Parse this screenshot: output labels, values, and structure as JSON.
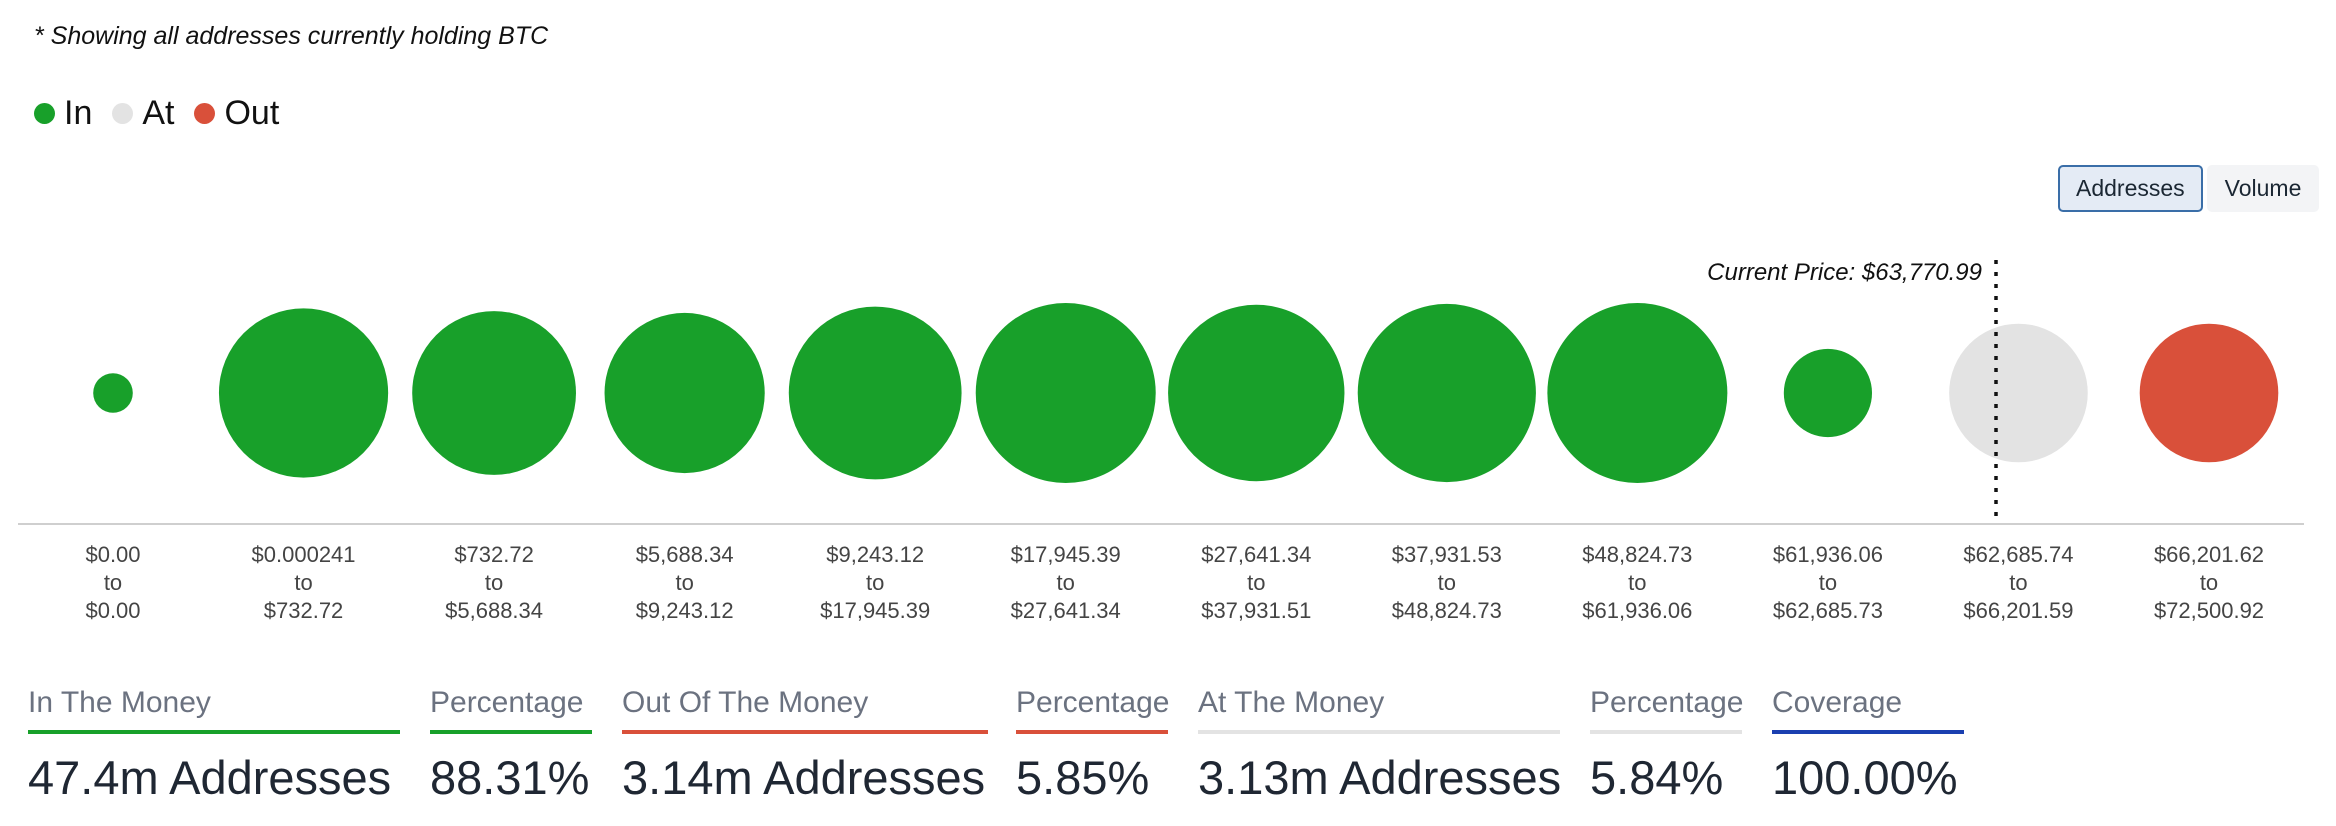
{
  "note": "* Showing all addresses currently holding BTC",
  "legend": [
    {
      "label": "In",
      "color": "#18a02a"
    },
    {
      "label": "At",
      "color": "#e3e3e3"
    },
    {
      "label": "Out",
      "color": "#d9503a"
    }
  ],
  "toggle": {
    "addresses_label": "Addresses",
    "volume_label": "Volume"
  },
  "chart_data": {
    "type": "bubble",
    "current_price_label": "Current Price: $63,770.99",
    "current_price": 63770.99,
    "buckets": [
      {
        "from": "$0.00",
        "to": "$0.00",
        "status": "in",
        "relative_size": 0.22
      },
      {
        "from": "$0.000241",
        "to": "$732.72",
        "status": "in",
        "relative_size": 0.94
      },
      {
        "from": "$732.72",
        "to": "$5,688.34",
        "status": "in",
        "relative_size": 0.91
      },
      {
        "from": "$5,688.34",
        "to": "$9,243.12",
        "status": "in",
        "relative_size": 0.89
      },
      {
        "from": "$9,243.12",
        "to": "$17,945.39",
        "status": "in",
        "relative_size": 0.96
      },
      {
        "from": "$17,945.39",
        "to": "$27,641.34",
        "status": "in",
        "relative_size": 1.0
      },
      {
        "from": "$27,641.34",
        "to": "$37,931.51",
        "status": "in",
        "relative_size": 0.98
      },
      {
        "from": "$37,931.53",
        "to": "$48,824.73",
        "status": "in",
        "relative_size": 0.99
      },
      {
        "from": "$48,824.73",
        "to": "$61,936.06",
        "status": "in",
        "relative_size": 1.0
      },
      {
        "from": "$61,936.06",
        "to": "$62,685.73",
        "status": "in",
        "relative_size": 0.49
      },
      {
        "from": "$62,685.74",
        "to": "$66,201.59",
        "status": "at",
        "relative_size": 0.77
      },
      {
        "from": "$66,201.62",
        "to": "$72,500.92",
        "status": "out",
        "relative_size": 0.77
      }
    ],
    "colors": {
      "in": "#18a02a",
      "at": "#e3e3e3",
      "out": "#d9503a"
    }
  },
  "stats": [
    {
      "label": "In The Money",
      "value": "47.4m Addresses",
      "color": "#18a02a"
    },
    {
      "label": "Percentage",
      "value": "88.31%",
      "color": "#18a02a"
    },
    {
      "label": "Out Of The Money",
      "value": "3.14m Addresses",
      "color": "#d9503a"
    },
    {
      "label": "Percentage",
      "value": "5.85%",
      "color": "#d9503a"
    },
    {
      "label": "At The Money",
      "value": "3.13m Addresses",
      "color": "#e3e3e3"
    },
    {
      "label": "Percentage",
      "value": "5.84%",
      "color": "#e3e3e3"
    },
    {
      "label": "Coverage",
      "value": "100.00%",
      "color": "#1a3fb0"
    }
  ]
}
